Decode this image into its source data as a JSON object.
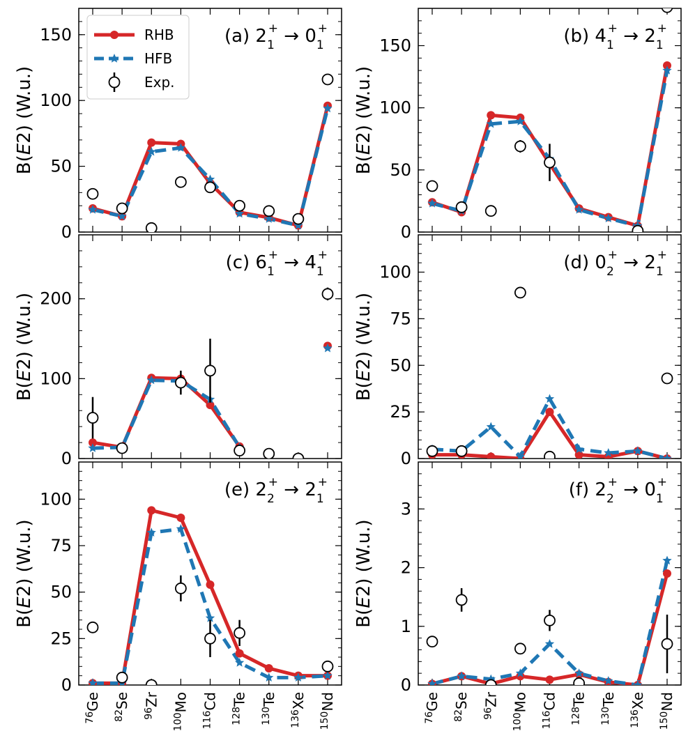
{
  "colors": {
    "rhb": "#d62728",
    "hfb": "#1f77b4",
    "axis": "#000000",
    "exp_face": "#ffffff"
  },
  "legend": {
    "position": "top-left of panel (a)",
    "rhb_label": "RHB",
    "hfb_label": "HFB",
    "exp_label": "Exp."
  },
  "ylabel": {
    "pre": "B(",
    "italic": "E",
    "post": "2) (W.u.)"
  },
  "nuclei": [
    {
      "mass": "76",
      "sym": "Ge"
    },
    {
      "mass": "82",
      "sym": "Se"
    },
    {
      "mass": "96",
      "sym": "Zr"
    },
    {
      "mass": "100",
      "sym": "Mo"
    },
    {
      "mass": "116",
      "sym": "Cd"
    },
    {
      "mass": "128",
      "sym": "Te"
    },
    {
      "mass": "130",
      "sym": "Te"
    },
    {
      "mass": "136",
      "sym": "Xe"
    },
    {
      "mass": "150",
      "sym": "Nd"
    }
  ],
  "chart_data": [
    {
      "type": "line",
      "panel": "a",
      "title": {
        "letter": "(a)",
        "ji": "2",
        "si": "1",
        "jf": "0",
        "sf": "1",
        "arrow": "→"
      },
      "ylim": [
        0,
        170
      ],
      "yticks": [
        0,
        50,
        100,
        150
      ],
      "title_align": "right",
      "series": [
        {
          "name": "RHB",
          "values": [
            18,
            12,
            68,
            67,
            37,
            15,
            11,
            5,
            96
          ]
        },
        {
          "name": "HFB",
          "values": [
            17,
            12,
            61,
            64,
            40,
            14,
            10,
            5,
            94
          ]
        },
        {
          "name": "Exp.",
          "values": [
            29,
            18,
            3,
            38,
            34,
            20,
            16,
            10,
            116
          ],
          "err": [
            0,
            0,
            0,
            0,
            0,
            0,
            0,
            0,
            0
          ]
        }
      ]
    },
    {
      "type": "line",
      "panel": "b",
      "title": {
        "letter": "(b)",
        "ji": "4",
        "si": "1",
        "jf": "2",
        "sf": "1",
        "arrow": "→"
      },
      "ylim": [
        0,
        180
      ],
      "yticks": [
        0,
        50,
        100,
        150
      ],
      "title_align": "right",
      "series": [
        {
          "name": "RHB",
          "values": [
            24,
            16,
            94,
            92,
            55,
            19,
            12,
            5,
            134
          ]
        },
        {
          "name": "HFB",
          "values": [
            23,
            17,
            87,
            89,
            59,
            18,
            11,
            5,
            130
          ]
        },
        {
          "name": "Exp.",
          "values": [
            37,
            20,
            17,
            69,
            56,
            null,
            null,
            1,
            181
          ],
          "err": [
            0,
            0,
            0,
            5,
            15,
            0,
            0,
            0,
            0
          ]
        }
      ]
    },
    {
      "type": "line",
      "panel": "c",
      "title": {
        "letter": "(c)",
        "ji": "6",
        "si": "1",
        "jf": "4",
        "sf": "1",
        "arrow": "→"
      },
      "ylim": [
        0,
        280
      ],
      "yticks": [
        0,
        100,
        200
      ],
      "title_align": "right",
      "series": [
        {
          "name": "RHB",
          "values": [
            20,
            14,
            101,
            100,
            67,
            15,
            null,
            null,
            141
          ]
        },
        {
          "name": "HFB",
          "values": [
            13,
            14,
            98,
            97,
            74,
            14,
            null,
            null,
            138
          ]
        },
        {
          "name": "Exp.",
          "values": [
            51,
            13,
            null,
            95,
            110,
            10,
            6,
            0,
            206
          ],
          "err": [
            26,
            0,
            0,
            15,
            40,
            0,
            0,
            0,
            8
          ]
        }
      ]
    },
    {
      "type": "line",
      "panel": "d",
      "title": {
        "letter": "(d)",
        "ji": "0",
        "si": "2",
        "jf": "2",
        "sf": "1",
        "arrow": "→"
      },
      "ylim": [
        0,
        120
      ],
      "yticks": [
        0,
        25,
        50,
        75,
        100
      ],
      "title_align": "right",
      "series": [
        {
          "name": "RHB",
          "values": [
            2,
            2,
            1,
            0,
            25,
            2,
            1,
            4,
            0
          ]
        },
        {
          "name": "HFB",
          "values": [
            5,
            4,
            17,
            1,
            32,
            5,
            3,
            4,
            0
          ]
        },
        {
          "name": "Exp.",
          "values": [
            4,
            4,
            null,
            89,
            1,
            null,
            null,
            null,
            43
          ],
          "err": [
            0,
            0,
            0,
            0,
            0,
            0,
            0,
            0,
            0
          ]
        }
      ]
    },
    {
      "type": "line",
      "panel": "e",
      "title": {
        "letter": "(e)",
        "ji": "2",
        "si": "2",
        "jf": "2",
        "sf": "1",
        "arrow": "→"
      },
      "ylim": [
        0,
        120
      ],
      "yticks": [
        0,
        25,
        50,
        75,
        100
      ],
      "title_align": "right",
      "series": [
        {
          "name": "RHB",
          "values": [
            1,
            1,
            94,
            90,
            54,
            17,
            9,
            5,
            5
          ]
        },
        {
          "name": "HFB",
          "values": [
            1,
            1,
            82,
            84,
            36,
            12,
            4,
            4,
            5
          ]
        },
        {
          "name": "Exp.",
          "values": [
            31,
            4,
            0,
            52,
            25,
            28,
            null,
            null,
            10
          ],
          "err": [
            0,
            0,
            0,
            7,
            10,
            7,
            0,
            0,
            0
          ]
        }
      ]
    },
    {
      "type": "line",
      "panel": "f",
      "title": {
        "letter": "(f)",
        "ji": "2",
        "si": "2",
        "jf": "0",
        "sf": "1",
        "arrow": "→"
      },
      "ylim": [
        0,
        3.8
      ],
      "yticks": [
        0,
        1,
        2,
        3
      ],
      "title_align": "right",
      "series": [
        {
          "name": "RHB",
          "values": [
            0.02,
            0.15,
            0.02,
            0.15,
            0.09,
            0.18,
            0.05,
            0.0,
            1.9
          ]
        },
        {
          "name": "HFB",
          "values": [
            0.02,
            0.15,
            0.1,
            0.2,
            0.7,
            0.2,
            0.07,
            0.0,
            2.12
          ]
        },
        {
          "name": "Exp.",
          "values": [
            0.74,
            1.45,
            0.0,
            0.62,
            1.1,
            0.03,
            null,
            null,
            0.7
          ],
          "err": [
            0,
            0.2,
            0,
            0,
            0.18,
            0,
            0,
            0,
            0.5
          ]
        }
      ]
    }
  ]
}
